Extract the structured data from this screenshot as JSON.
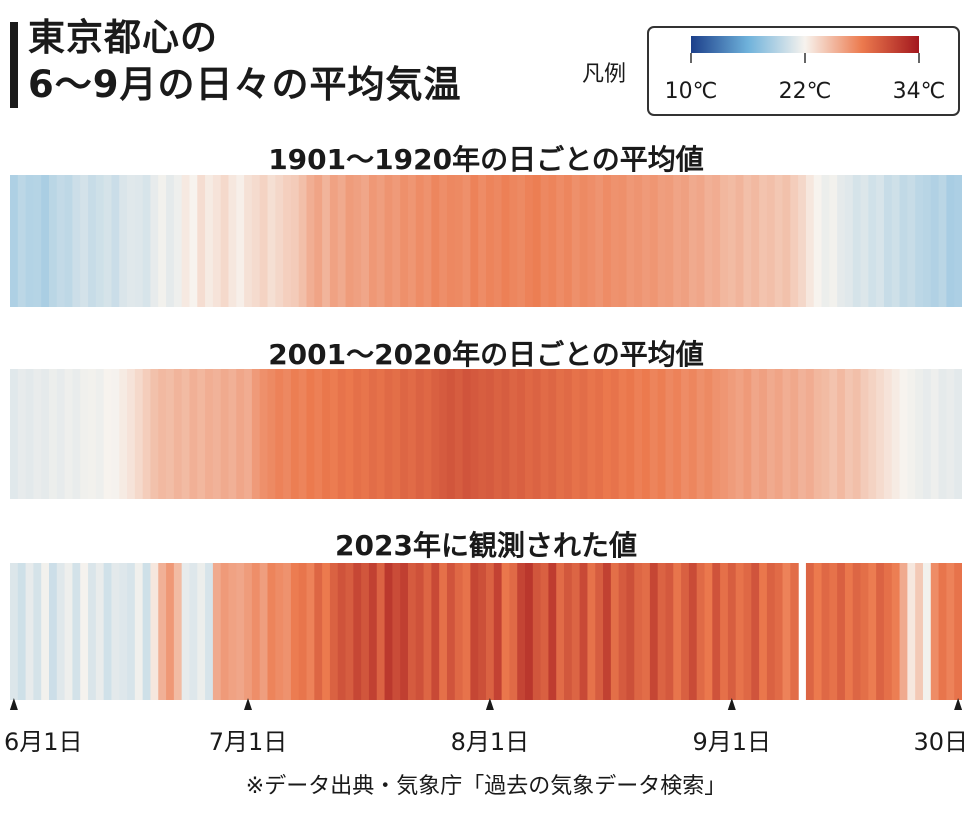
{
  "title_line1": "東京都心の",
  "title_line2": "6～9月の日々の平均気温",
  "legend": {
    "label": "凡例",
    "min_label": "10℃",
    "mid_label": "22℃",
    "max_label": "34℃",
    "min": 10,
    "mid": 22,
    "max": 34,
    "colors": [
      "#1c3f8a",
      "#6fb2db",
      "#f7f3ee",
      "#ec7a4e",
      "#a3181e"
    ]
  },
  "axis": {
    "labels": [
      "6月1日",
      "7月1日",
      "8月1日",
      "9月1日",
      "30日"
    ],
    "day_index": [
      0,
      30,
      61,
      92,
      121
    ]
  },
  "source": "※データ出典・気象庁「過去の気象データ検索」",
  "chart_data": [
    {
      "type": "heatmap",
      "title": "1901～1920年の日ごとの平均値",
      "start_date": "06-01",
      "end_date": "09-30",
      "unit": "℃",
      "values": [
        18.8,
        19.4,
        19.0,
        19.1,
        18.6,
        19.3,
        19.7,
        19.5,
        20.1,
        20.4,
        19.9,
        20.2,
        20.5,
        20.0,
        20.7,
        21.0,
        20.9,
        20.6,
        21.3,
        21.8,
        21.2,
        21.6,
        22.5,
        22.0,
        23.1,
        22.4,
        22.8,
        23.3,
        22.6,
        22.2,
        22.9,
        23.2,
        23.6,
        23.0,
        23.4,
        23.8,
        24.0,
        24.6,
        25.4,
        25.9,
        25.1,
        26.0,
        25.6,
        26.3,
        26.1,
        25.8,
        26.5,
        26.2,
        26.7,
        26.4,
        26.9,
        26.6,
        27.1,
        26.8,
        27.4,
        27.0,
        27.3,
        27.2,
        26.9,
        27.6,
        27.1,
        27.5,
        27.3,
        27.7,
        27.4,
        27.2,
        27.6,
        27.8,
        27.3,
        27.5,
        27.1,
        27.4,
        26.9,
        27.2,
        27.0,
        26.7,
        27.1,
        26.8,
        26.9,
        26.5,
        26.7,
        26.4,
        26.6,
        26.2,
        26.3,
        25.9,
        26.1,
        25.6,
        25.8,
        25.3,
        25.5,
        25.0,
        24.8,
        25.1,
        24.6,
        24.9,
        24.4,
        24.6,
        24.2,
        24.5,
        23.9,
        23.4,
        22.6,
        22.0,
        21.5,
        21.8,
        21.2,
        21.0,
        20.5,
        20.8,
        20.3,
        20.6,
        19.9,
        20.2,
        19.6,
        19.9,
        19.4,
        19.2,
        18.9,
        19.3,
        18.5,
        18.7
      ]
    },
    {
      "type": "heatmap",
      "title": "2001～2020年の日ごとの平均値",
      "start_date": "06-01",
      "end_date": "09-30",
      "unit": "℃",
      "values": [
        21.0,
        21.3,
        21.1,
        21.4,
        21.2,
        21.5,
        21.3,
        21.6,
        21.4,
        21.7,
        21.8,
        21.6,
        22.0,
        21.9,
        22.4,
        22.8,
        23.3,
        23.9,
        24.5,
        24.9,
        24.7,
        25.1,
        24.8,
        25.3,
        25.0,
        25.4,
        25.2,
        25.6,
        25.3,
        25.8,
        25.5,
        26.4,
        26.9,
        27.2,
        27.6,
        27.3,
        27.8,
        27.5,
        28.0,
        27.7,
        28.2,
        27.9,
        28.4,
        28.1,
        28.6,
        28.3,
        28.8,
        28.5,
        29.0,
        28.7,
        29.2,
        28.9,
        29.4,
        29.1,
        29.6,
        29.9,
        30.2,
        29.8,
        30.3,
        30.0,
        29.7,
        29.9,
        29.5,
        29.8,
        29.3,
        29.6,
        29.1,
        29.4,
        28.9,
        29.2,
        28.7,
        29.0,
        28.5,
        28.8,
        28.3,
        28.6,
        28.1,
        28.4,
        27.9,
        28.2,
        27.7,
        28.0,
        27.5,
        27.8,
        27.3,
        27.6,
        27.1,
        27.4,
        26.9,
        27.2,
        26.8,
        26.6,
        26.3,
        26.0,
        26.4,
        25.8,
        26.1,
        25.6,
        25.9,
        25.4,
        25.7,
        25.2,
        25.5,
        25.0,
        24.8,
        24.4,
        24.9,
        24.3,
        24.6,
        24.0,
        23.6,
        23.2,
        22.8,
        22.4,
        22.0,
        21.8,
        21.5,
        21.3,
        21.6,
        21.2,
        21.4,
        21.1
      ]
    },
    {
      "type": "heatmap",
      "title": "2023年に観測された値",
      "start_date": "06-01",
      "end_date": "09-30",
      "unit": "℃",
      "values": [
        20.8,
        20.2,
        21.3,
        20.5,
        21.8,
        20.1,
        21.0,
        21.6,
        20.4,
        21.9,
        20.7,
        21.4,
        20.3,
        21.1,
        20.9,
        20.6,
        21.7,
        20.2,
        22.6,
        25.3,
        26.5,
        24.8,
        21.3,
        20.9,
        21.5,
        20.6,
        25.6,
        26.4,
        26.0,
        25.8,
        26.3,
        27.0,
        26.2,
        27.5,
        27.1,
        26.8,
        27.9,
        28.3,
        27.6,
        29.2,
        28.0,
        29.5,
        30.4,
        29.8,
        31.1,
        30.2,
        31.5,
        29.4,
        32.0,
        30.8,
        31.6,
        29.9,
        30.5,
        29.2,
        31.0,
        28.6,
        30.3,
        29.1,
        28.4,
        31.2,
        30.6,
        29.5,
        31.4,
        28.2,
        29.0,
        31.3,
        32.1,
        30.2,
        29.6,
        31.8,
        28.9,
        30.1,
        29.3,
        31.0,
        28.5,
        29.8,
        31.5,
        28.7,
        29.9,
        30.6,
        29.2,
        28.8,
        31.2,
        29.4,
        30.0,
        28.3,
        29.6,
        30.9,
        29.0,
        28.1,
        30.4,
        28.6,
        29.7,
        28.4,
        29.1,
        30.3,
        28.2,
        29.5,
        28.9,
        27.6,
        28.8,
        null,
        29.3,
        28.0,
        29.1,
        28.5,
        29.6,
        28.2,
        29.2,
        28.7,
        27.9,
        29.4,
        28.6,
        27.8,
        25.6,
        22.6,
        24.1,
        21.8,
        27.1,
        28.3,
        27.6,
        28.4
      ]
    }
  ]
}
